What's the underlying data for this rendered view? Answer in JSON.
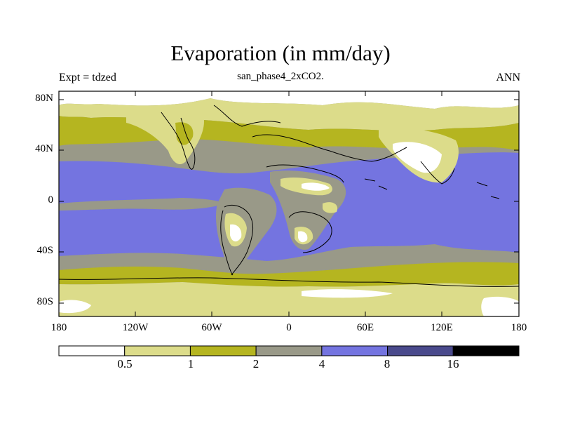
{
  "header": {
    "title": "Evaporation (in mm/day)",
    "subtitle": "san_phase4_2xCO2.",
    "left_label": "Expt = tdzed",
    "right_label": "ANN"
  },
  "axes": {
    "y_ticks": [
      "80N",
      "40N",
      "0",
      "40S",
      "80S"
    ],
    "x_ticks": [
      "180",
      "120W",
      "60W",
      "0",
      "60E",
      "120E",
      "180"
    ]
  },
  "colorbar": {
    "labels": [
      "0.5",
      "1",
      "2",
      "4",
      "8",
      "16"
    ],
    "levels": [
      0.5,
      1,
      2,
      4,
      8,
      16
    ],
    "colors": [
      "#ffffff",
      "#dcdc8a",
      "#b5b520",
      "#999988",
      "#7474e0",
      "#4a4a8c",
      "#000000"
    ]
  }
}
